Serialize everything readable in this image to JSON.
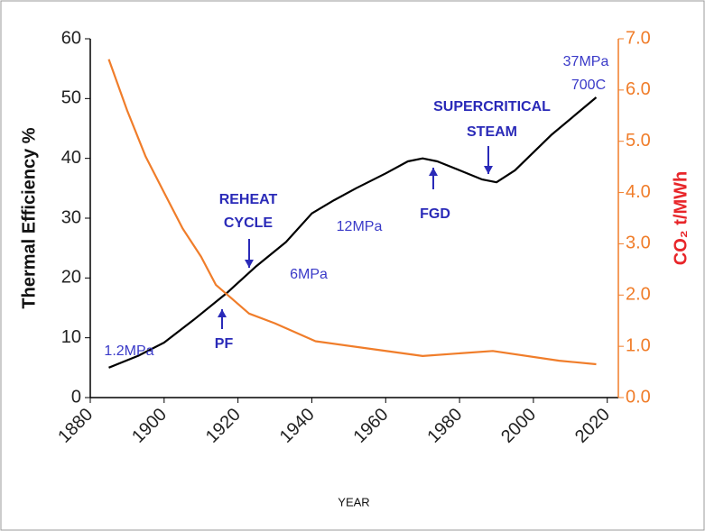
{
  "chart_data": {
    "type": "line",
    "y_label": "Thermal Efficiency %",
    "y2_label": "CO₂ t/MWh",
    "x_label": "YEAR",
    "xlim": [
      1880,
      2023
    ],
    "xticks": [
      1880,
      1900,
      1920,
      1940,
      1960,
      1980,
      2000,
      2020
    ],
    "ylim": [
      0,
      60
    ],
    "yticks": [
      0,
      10,
      20,
      30,
      40,
      50,
      60
    ],
    "y2lim": [
      0,
      7
    ],
    "y2ticks": [
      {
        "value": 0,
        "label": "0.0"
      },
      {
        "value": 1,
        "label": "1.0"
      },
      {
        "value": 2,
        "label": "2.0"
      },
      {
        "value": 3,
        "label": "3.0"
      },
      {
        "value": 4,
        "label": "4.0"
      },
      {
        "value": 5,
        "label": "5.0"
      },
      {
        "value": 6,
        "label": "6.0"
      },
      {
        "value": 7,
        "label": "7.0"
      }
    ],
    "series": [
      {
        "color": "#000000",
        "x": [
          1885,
          1893,
          1900,
          1908,
          1917,
          1925,
          1933,
          1940,
          1946,
          1952,
          1960,
          1966,
          1970,
          1974,
          1980,
          1986,
          1990,
          1995,
          2005,
          2017
        ],
        "values": [
          5,
          7,
          9.2,
          13,
          17.5,
          22,
          26,
          30.8,
          33,
          35,
          37.5,
          39.5,
          40,
          39.5,
          38,
          36.5,
          36,
          38,
          44,
          50.2
        ]
      },
      {
        "color": "#f07d2a",
        "axis": "y2",
        "x": [
          1885,
          1890,
          1895,
          1900,
          1905,
          1910,
          1914,
          1918,
          1923,
          1930,
          1941,
          1958,
          1970,
          1989,
          2007,
          2017
        ],
        "values": [
          6.6,
          5.6,
          4.7,
          4.0,
          3.3,
          2.75,
          2.2,
          1.95,
          1.64,
          1.45,
          1.1,
          0.93,
          0.81,
          0.91,
          0.72,
          0.65
        ]
      }
    ],
    "annotations": [
      "REHEAT",
      "CYCLE",
      "PF",
      "FGD",
      "SUPERCRITICAL",
      "STEAM",
      "1.2MPa",
      "6MPa",
      "12MPa",
      "37MPa",
      "700C"
    ]
  }
}
